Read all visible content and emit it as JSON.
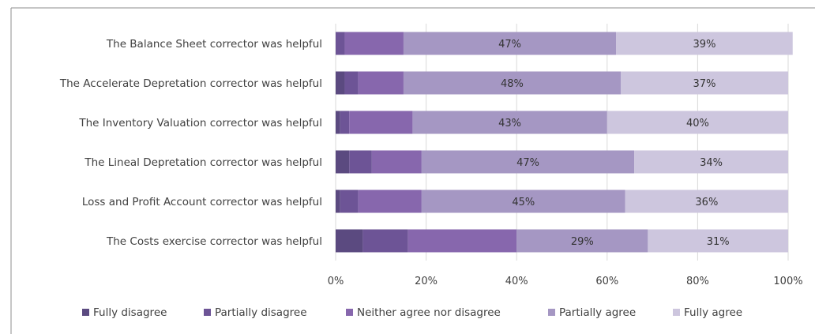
{
  "chart_data": {
    "type": "bar",
    "orientation": "horizontal",
    "stacked": "percent",
    "title": "",
    "xlabel": "",
    "ylabel": "",
    "xlim": [
      0,
      100
    ],
    "x_ticks": [
      "0%",
      "20%",
      "40%",
      "60%",
      "80%",
      "100%"
    ],
    "grid": true,
    "legend_position": "bottom",
    "categories": [
      "The Balance Sheet corrector was helpful",
      "The Accelerate Depretation corrector was helpful",
      "The Inventory Valuation corrector was helpful",
      "The Lineal Depretation corrector was helpful",
      "Loss and Profit Account corrector was helpful",
      "The Costs exercise corrector was helpful"
    ],
    "series": [
      {
        "name": "Fully disagree",
        "color": "#5b4a80",
        "values": [
          0,
          2,
          1,
          3,
          1,
          6
        ],
        "labels": [
          "",
          "",
          "",
          "",
          "",
          ""
        ]
      },
      {
        "name": "Partially disagree",
        "color": "#6d5496",
        "values": [
          2,
          3,
          2,
          5,
          4,
          10
        ],
        "labels": [
          "",
          "",
          "",
          "",
          "",
          ""
        ]
      },
      {
        "name": "Neither agree nor disagree",
        "color": "#8767ad",
        "values": [
          13,
          10,
          14,
          11,
          14,
          24
        ],
        "labels": [
          "",
          "",
          "",
          "",
          "",
          ""
        ]
      },
      {
        "name": "Partially agree",
        "color": "#a597c3",
        "values": [
          47,
          48,
          43,
          47,
          45,
          29
        ],
        "labels": [
          "47%",
          "48%",
          "43%",
          "47%",
          "45%",
          "29%"
        ]
      },
      {
        "name": "Fully agree",
        "color": "#cdc6de",
        "values": [
          39,
          37,
          40,
          34,
          36,
          31
        ],
        "labels": [
          "39%",
          "37%",
          "40%",
          "34%",
          "36%",
          "31%"
        ]
      }
    ]
  }
}
